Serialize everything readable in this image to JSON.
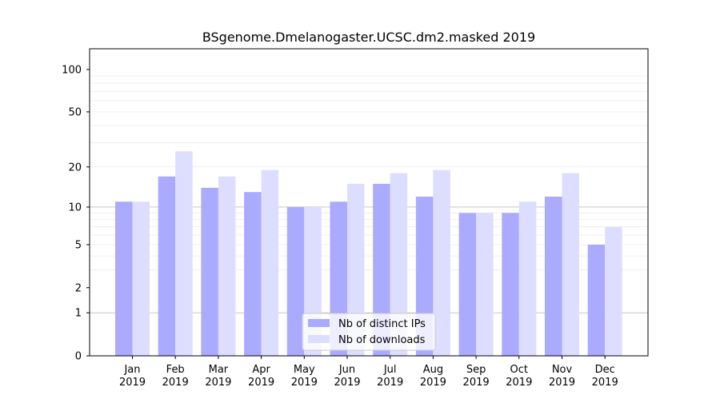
{
  "chart_data": {
    "type": "bar",
    "title": "BSgenome.Dmelanogaster.UCSC.dm2.masked 2019",
    "xlabel": "",
    "ylabel": "",
    "y_scale": "log1p",
    "ylim": [
      0,
      140
    ],
    "y_ticks": [
      0,
      1,
      2,
      5,
      10,
      20,
      50,
      100
    ],
    "categories": [
      "Jan\n2019",
      "Feb\n2019",
      "Mar\n2019",
      "Apr\n2019",
      "May\n2019",
      "Jun\n2019",
      "Jul\n2019",
      "Aug\n2019",
      "Sep\n2019",
      "Oct\n2019",
      "Nov\n2019",
      "Dec\n2019"
    ],
    "series": [
      {
        "name": "Nb of distinct IPs",
        "color": "#aaaaff",
        "values": [
          11,
          17,
          14,
          13,
          10,
          11,
          15,
          12,
          9,
          9,
          12,
          5
        ]
      },
      {
        "name": "Nb of downloads",
        "color": "#ddddff",
        "values": [
          11,
          26,
          17,
          19,
          10,
          15,
          18,
          19,
          9,
          11,
          18,
          7
        ]
      }
    ],
    "grid": true,
    "legend": "bottom-center"
  }
}
